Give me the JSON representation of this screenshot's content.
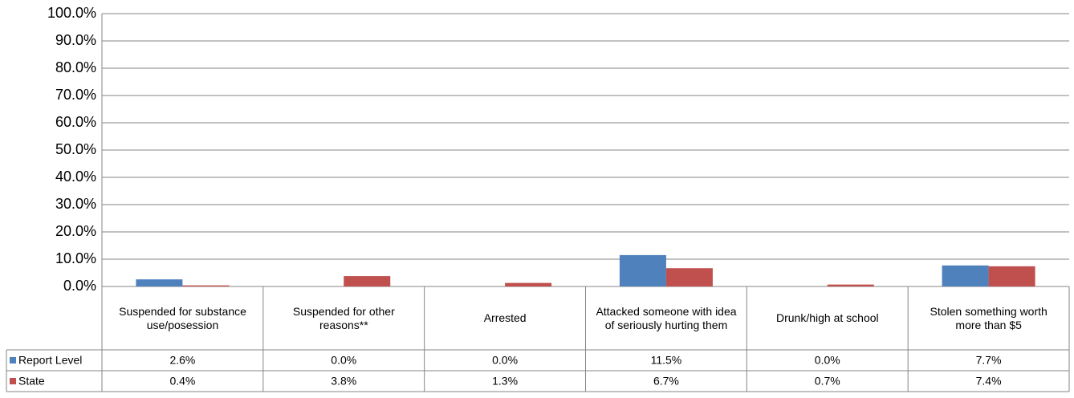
{
  "chart_data": {
    "type": "bar",
    "categories": [
      "Suspended for substance use/posession",
      "Suspended for other reasons**",
      "Arrested",
      "Attacked someone with idea of seriously hurting them",
      "Drunk/high at school",
      "Stolen something worth more than $5"
    ],
    "series": [
      {
        "name": "Report Level",
        "color": "#4f81bd",
        "values": [
          2.6,
          0.0,
          0.0,
          11.5,
          0.0,
          7.7
        ],
        "value_labels": [
          "2.6%",
          "0.0%",
          "0.0%",
          "11.5%",
          "0.0%",
          "7.7%"
        ]
      },
      {
        "name": "State",
        "color": "#c0504d",
        "values": [
          0.4,
          3.8,
          1.3,
          6.7,
          0.7,
          7.4
        ],
        "value_labels": [
          "0.4%",
          "3.8%",
          "1.3%",
          "6.7%",
          "0.7%",
          "7.4%"
        ]
      }
    ],
    "ylim": [
      0,
      100
    ],
    "yticks": [
      {
        "value": 0,
        "label": "0.0%"
      },
      {
        "value": 10,
        "label": "10.0%"
      },
      {
        "value": 20,
        "label": "20.0%"
      },
      {
        "value": 30,
        "label": "30.0%"
      },
      {
        "value": 40,
        "label": "40.0%"
      },
      {
        "value": 50,
        "label": "50.0%"
      },
      {
        "value": 60,
        "label": "60.0%"
      },
      {
        "value": 70,
        "label": "70.0%"
      },
      {
        "value": 80,
        "label": "80.0%"
      },
      {
        "value": 90,
        "label": "90.0%"
      },
      {
        "value": 100,
        "label": "100.0%"
      }
    ],
    "grid": true,
    "legend": "table"
  }
}
